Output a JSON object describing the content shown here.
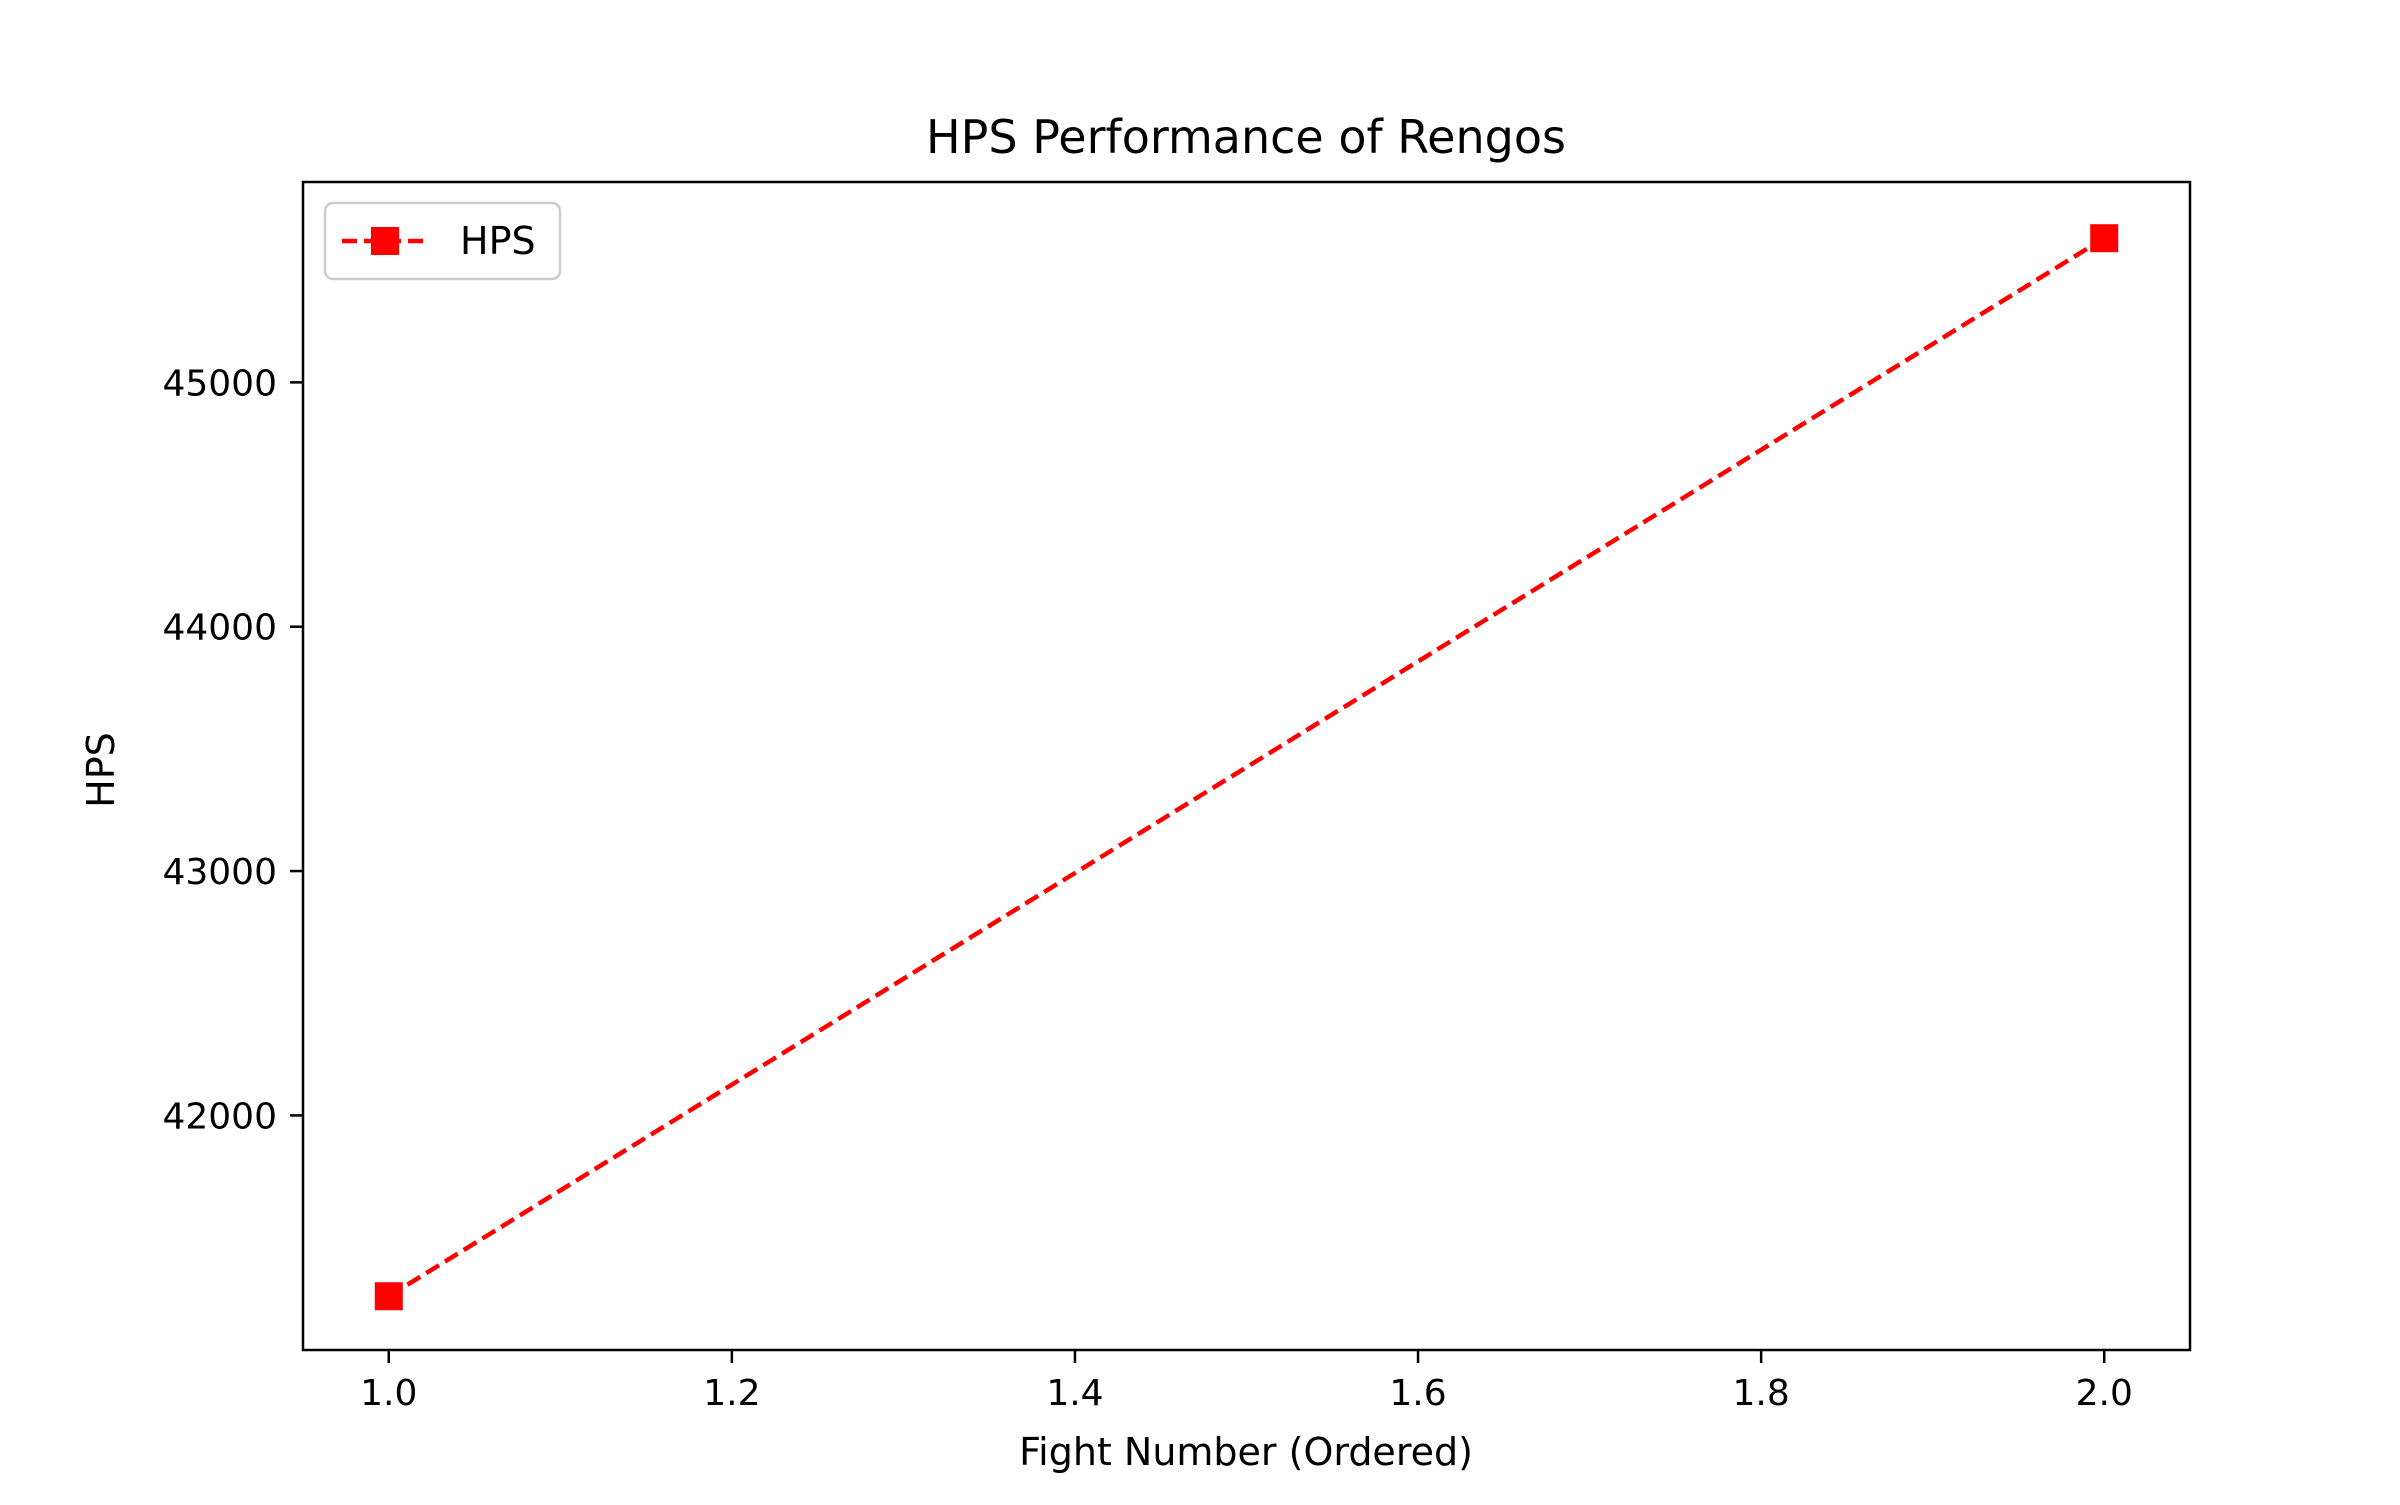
{
  "chart_data": {
    "type": "line",
    "title": "HPS Performance of Rengos",
    "xlabel": "Fight Number (Ordered)",
    "ylabel": "HPS",
    "xlim": [
      0.95,
      2.05
    ],
    "ylim": [
      41040,
      45820
    ],
    "x_ticks": [
      1.0,
      1.2,
      1.4,
      1.6,
      1.8,
      2.0
    ],
    "x_tick_labels": [
      "1.0",
      "1.2",
      "1.4",
      "1.6",
      "1.8",
      "2.0"
    ],
    "y_ticks": [
      42000,
      43000,
      44000,
      45000
    ],
    "y_tick_labels": [
      "42000",
      "43000",
      "44000",
      "45000"
    ],
    "grid": false,
    "legend_position": "top-left",
    "series": [
      {
        "name": "HPS",
        "color": "#ff0000",
        "line_style": "dashed",
        "marker": "square",
        "x": [
          1.0,
          2.0
        ],
        "y": [
          41260,
          45590
        ]
      }
    ]
  }
}
